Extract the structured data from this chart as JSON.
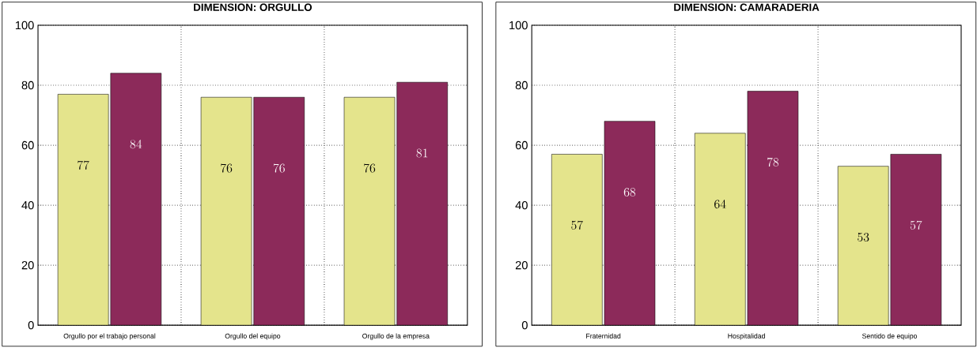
{
  "chart_data": [
    {
      "type": "bar",
      "title": "DIMENSION: ORGULLO",
      "categories": [
        "Orgullo por el trabajo personal",
        "Orgullo del equipo",
        "Orgullo de la empresa"
      ],
      "series": [
        {
          "color": "#e4e48c",
          "values": [
            77,
            76,
            76
          ]
        },
        {
          "color": "#8c2a5a",
          "values": [
            84,
            76,
            81
          ]
        }
      ],
      "ylim": [
        0,
        100
      ],
      "yticks": [
        0,
        20,
        40,
        60,
        80,
        100
      ],
      "grid": true,
      "data_labels": true
    },
    {
      "type": "bar",
      "title": "DIMENSION: CAMARADERIA",
      "categories": [
        "Fraternidad",
        "Hospitalidad",
        "Sentido de equipo"
      ],
      "series": [
        {
          "color": "#e4e48c",
          "values": [
            57,
            64,
            53
          ]
        },
        {
          "color": "#8c2a5a",
          "values": [
            68,
            78,
            57
          ]
        }
      ],
      "ylim": [
        0,
        100
      ],
      "yticks": [
        0,
        20,
        40,
        60,
        80,
        100
      ],
      "grid": true,
      "data_labels": true
    }
  ]
}
